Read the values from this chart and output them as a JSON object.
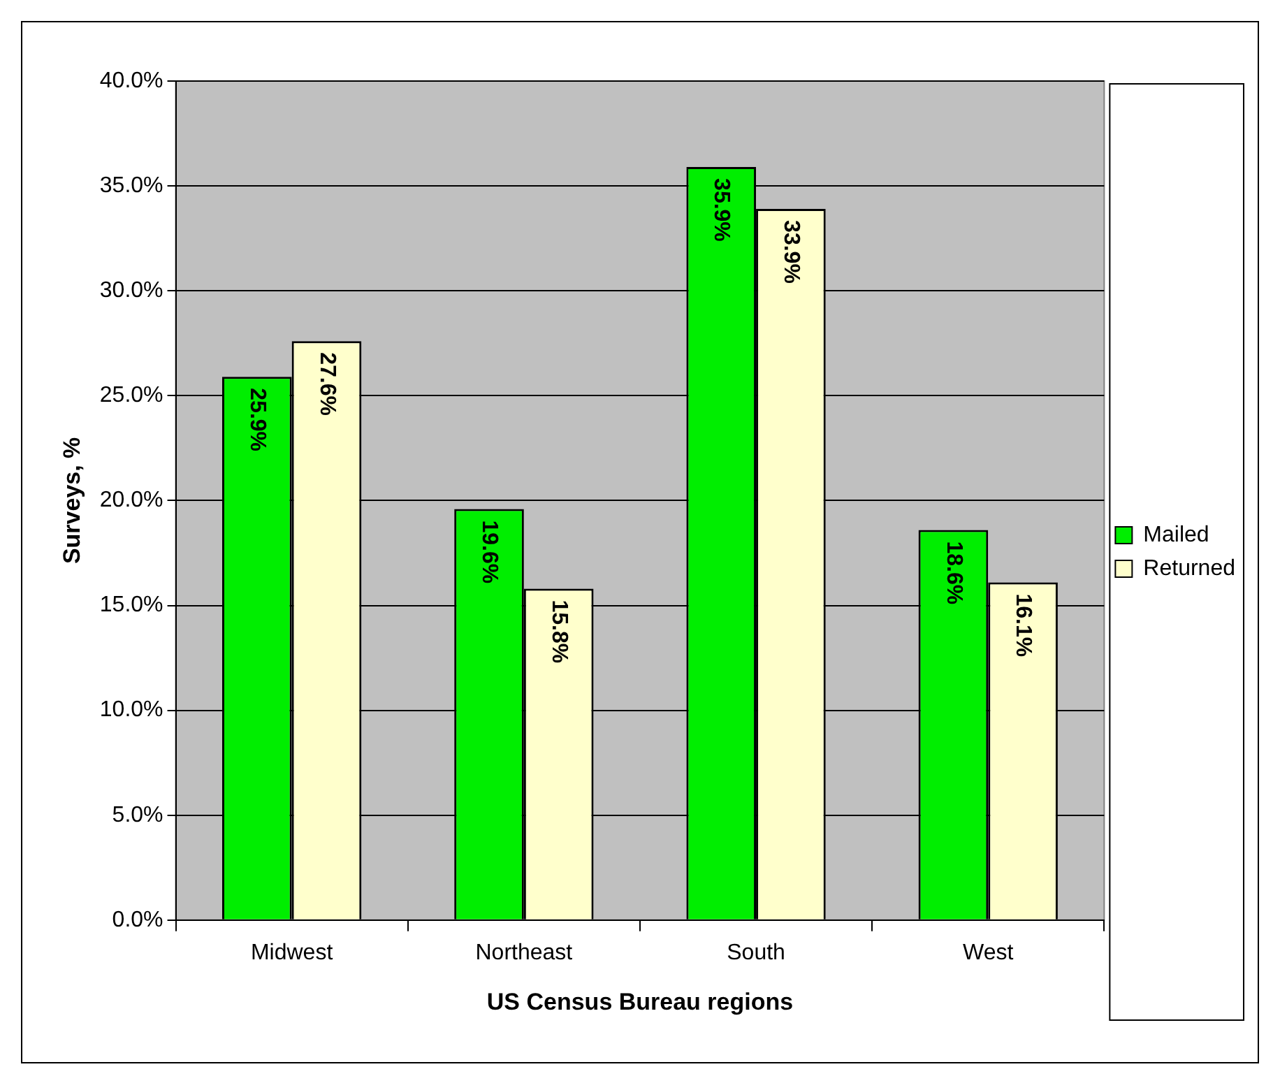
{
  "chart_data": {
    "type": "bar",
    "xlabel": "US Census Bureau regions",
    "ylabel": "Surveys, %",
    "categories": [
      "Midwest",
      "Northeast",
      "South",
      "West"
    ],
    "series": [
      {
        "name": "Mailed",
        "color": "#00ee00",
        "values": [
          25.9,
          19.6,
          35.9,
          18.6
        ],
        "value_labels": [
          "25.9%",
          "19.6%",
          "35.9%",
          "18.6%"
        ]
      },
      {
        "name": "Returned",
        "color": "#ffffcc",
        "values": [
          27.6,
          15.8,
          33.9,
          16.1
        ],
        "value_labels": [
          "27.6%",
          "15.8%",
          "33.9%",
          "16.1%"
        ]
      }
    ],
    "ylim": [
      0,
      40
    ],
    "yticks": [
      {
        "value": 0,
        "label": "0.0%"
      },
      {
        "value": 5,
        "label": "5.0%"
      },
      {
        "value": 10,
        "label": "10.0%"
      },
      {
        "value": 15,
        "label": "15.0%"
      },
      {
        "value": 20,
        "label": "20.0%"
      },
      {
        "value": 25,
        "label": "25.0%"
      },
      {
        "value": 30,
        "label": "30.0%"
      },
      {
        "value": 35,
        "label": "35.0%"
      },
      {
        "value": 40,
        "label": "40.0%"
      }
    ],
    "grid": "y",
    "legend": "right"
  }
}
